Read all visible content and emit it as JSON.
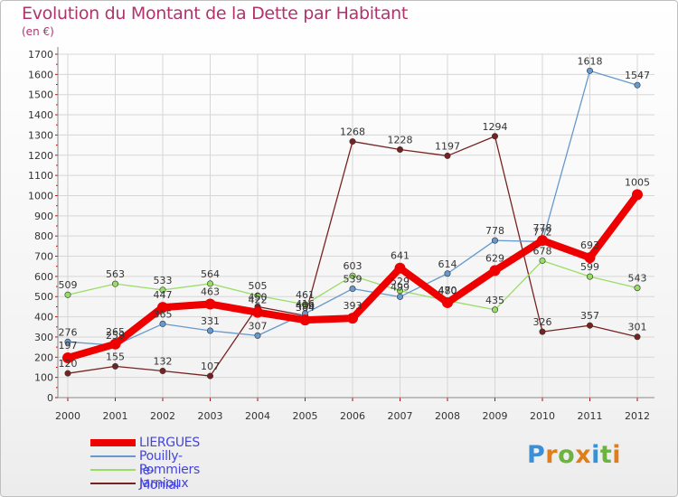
{
  "chart_data": {
    "type": "line",
    "title": "Evolution du Montant de la Dette par Habitant",
    "subtitle": "(en €)",
    "x": [
      "2000",
      "2001",
      "2002",
      "2003",
      "2004",
      "2005",
      "2006",
      "2007",
      "2008",
      "2009",
      "2010",
      "2011",
      "2012"
    ],
    "ylim": [
      0,
      1700
    ],
    "yticks": [
      0,
      100,
      200,
      300,
      400,
      500,
      600,
      700,
      800,
      900,
      1000,
      1100,
      1200,
      1300,
      1400,
      1500,
      1600,
      1700
    ],
    "grid": true,
    "legend_position": "bottom-left",
    "series": [
      {
        "name": "LIERGUES",
        "color": "#ee0000",
        "values": [
          197,
          265,
          447,
          463,
          422,
          384,
          393,
          641,
          470,
          629,
          778,
          693,
          1005
        ]
      },
      {
        "name": "Pouilly-le-Monial",
        "color": "#6699cc",
        "values": [
          276,
          259,
          365,
          331,
          307,
          416,
          539,
          499,
          614,
          778,
          772,
          1618,
          1547
        ]
      },
      {
        "name": "Pommiers",
        "color": "#99dd66",
        "values": [
          509,
          563,
          533,
          564,
          505,
          461,
          603,
          529,
          480,
          435,
          678,
          599,
          543
        ]
      },
      {
        "name": "Jarnioux",
        "color": "#772222",
        "values": [
          120,
          155,
          132,
          107,
          450,
          406,
          1268,
          1228,
          1197,
          1294,
          326,
          357,
          301
        ]
      }
    ]
  },
  "brand": {
    "letters": [
      "P",
      "r",
      "o",
      "x",
      "i",
      "t",
      "i"
    ],
    "colors": [
      "#3b8fd6",
      "#e07e1c",
      "#6db33f",
      "#e07e1c",
      "#3b8fd6",
      "#6db33f",
      "#e07e1c"
    ]
  }
}
